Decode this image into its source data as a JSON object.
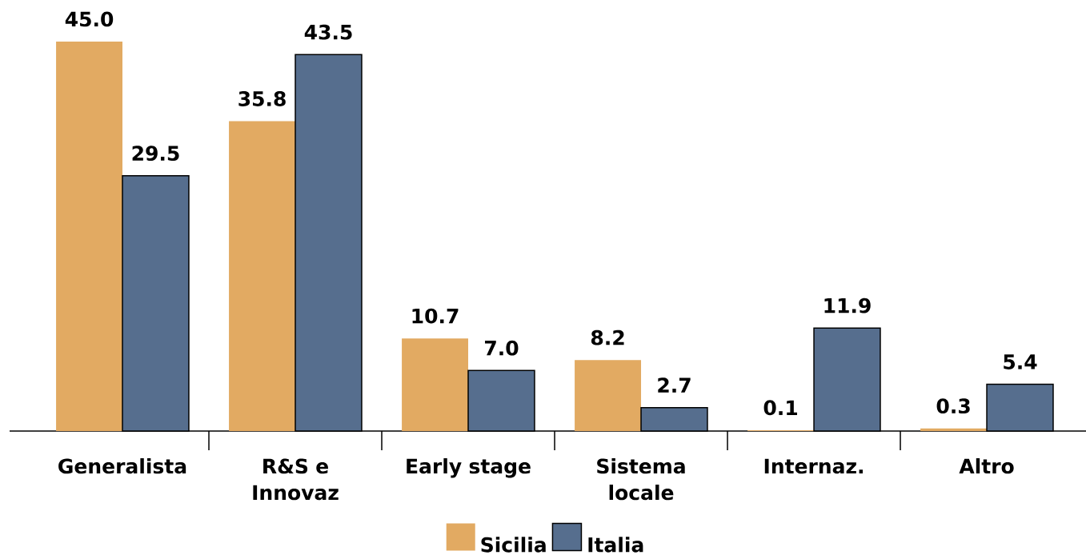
{
  "chart_data": {
    "type": "bar",
    "categories": [
      "Generalista",
      "R&S e Innovaz",
      "Early stage",
      "Sistema locale",
      "Internaz.",
      "Altro"
    ],
    "series": [
      {
        "name": "Sicilia",
        "color": "#e2aa62",
        "values": [
          45.0,
          35.8,
          10.7,
          8.2,
          0.1,
          0.3
        ],
        "value_labels": [
          "45.0",
          "35.8",
          "10.7",
          "8.2",
          "0.1",
          "0.3"
        ]
      },
      {
        "name": "Italia",
        "color": "#566e8e",
        "values": [
          29.5,
          43.5,
          7.0,
          2.7,
          11.9,
          5.4
        ],
        "value_labels": [
          "29.5",
          "43.5",
          "7.0",
          "2.7",
          "11.9",
          "5.4"
        ]
      }
    ],
    "legend": "bottom"
  }
}
